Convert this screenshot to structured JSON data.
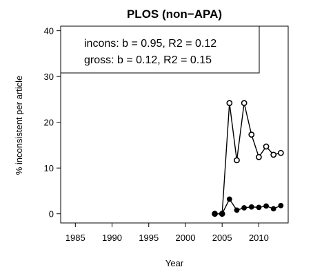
{
  "chart_data": {
    "type": "line",
    "title": "PLOS (non−APA)",
    "xlabel": "Year",
    "ylabel": "% inconsistent per article",
    "xlim": [
      1983,
      2014
    ],
    "ylim": [
      -2,
      41
    ],
    "xticks": [
      1985,
      1990,
      1995,
      2000,
      2005,
      2010
    ],
    "yticks": [
      0,
      10,
      20,
      30,
      40
    ],
    "legend": {
      "placement": "top-left",
      "lines": [
        "incons: b = 0.95, R2 = 0.12",
        "gross: b = 0.12, R2 = 0.15"
      ]
    },
    "series": [
      {
        "marker": "open-circle",
        "x": [
          2004,
          2005,
          2006,
          2007,
          2008,
          2009,
          2010,
          2011,
          2012,
          2013
        ],
        "y": [
          0,
          0,
          24.2,
          11.7,
          24.2,
          17.3,
          12.4,
          14.7,
          12.9,
          13.3
        ]
      },
      {
        "marker": "filled-circle",
        "x": [
          2004,
          2005,
          2006,
          2007,
          2008,
          2009,
          2010,
          2011,
          2012,
          2013
        ],
        "y": [
          0,
          0,
          3.2,
          0.8,
          1.3,
          1.5,
          1.4,
          1.7,
          1.1,
          1.8
        ]
      }
    ]
  }
}
